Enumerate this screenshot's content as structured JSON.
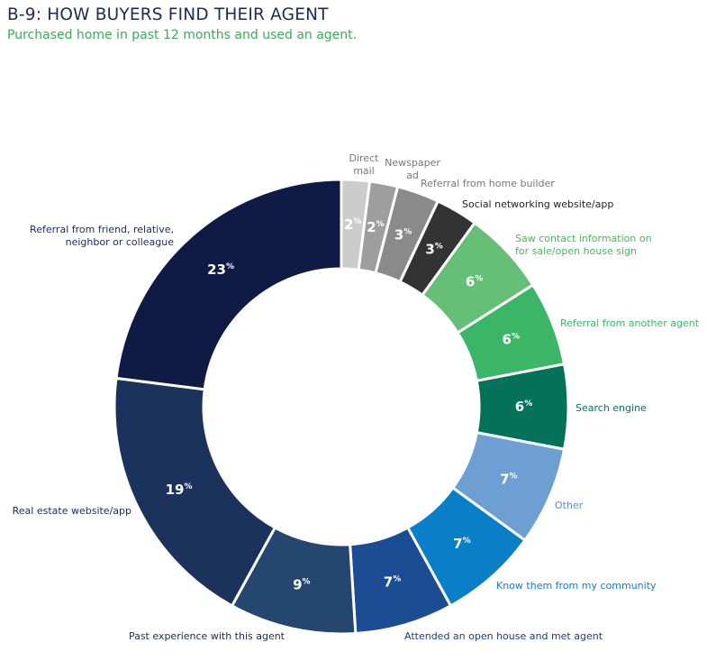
{
  "header": {
    "title": "B-9: HOW BUYERS FIND THEIR AGENT",
    "subtitle": "Purchased home in past 12 months and used an agent."
  },
  "chart_data": {
    "type": "pie",
    "title": "B-9: HOW BUYERS FIND THEIR AGENT",
    "subtitle": "Purchased home in past 12 months and used an agent.",
    "donut": true,
    "value_suffix": "%",
    "slices": [
      {
        "label": "Direct mail",
        "label_lines": [
          "Direct",
          "mail"
        ],
        "value": 2,
        "color": "#cccccc",
        "label_color": "#777777",
        "value_color": "#ffffff"
      },
      {
        "label": "Newspaper ad",
        "label_lines": [
          "Newspaper",
          "ad"
        ],
        "value": 2,
        "color": "#9e9e9e",
        "label_color": "#777777",
        "value_color": "#ffffff"
      },
      {
        "label": "Referral from home builder",
        "label_lines": [
          "Referral from home builder"
        ],
        "value": 3,
        "color": "#8a8a8a",
        "label_color": "#777777",
        "value_color": "#ffffff"
      },
      {
        "label": "Social networking website/app",
        "label_lines": [
          "Social networking website/app"
        ],
        "value": 3,
        "color": "#333333",
        "label_color": "#222222",
        "value_color": "#ffffff"
      },
      {
        "label": "Saw contact information on for sale/open house sign",
        "label_lines": [
          "Saw contact information on",
          "for sale/open house sign"
        ],
        "value": 6,
        "color": "#66bf76",
        "label_color": "#4cb45f",
        "value_color": "#ffffff"
      },
      {
        "label": "Referral from another agent",
        "label_lines": [
          "Referral from another agent"
        ],
        "value": 6,
        "color": "#3bb566",
        "label_color": "#3bb566",
        "value_color": "#ffffff"
      },
      {
        "label": "Search engine",
        "label_lines": [
          "Search engine"
        ],
        "value": 6,
        "color": "#047259",
        "label_color": "#047259",
        "value_color": "#ffffff"
      },
      {
        "label": "Other",
        "label_lines": [
          "Other"
        ],
        "value": 7,
        "color": "#6e9fd2",
        "label_color": "#5a8fc8",
        "value_color": "#ffffff"
      },
      {
        "label": "Know them from my community",
        "label_lines": [
          "Know them from my community"
        ],
        "value": 7,
        "color": "#0a7fc7",
        "label_color": "#0a7fc7",
        "value_color": "#ffffff"
      },
      {
        "label": "Attended an open house and met agent",
        "label_lines": [
          "Attended an open house and met agent"
        ],
        "value": 7,
        "color": "#1b4c94",
        "label_color": "#1b3e78",
        "value_color": "#ffffff"
      },
      {
        "label": "Past experience with this agent",
        "label_lines": [
          "Past experience with this agent"
        ],
        "value": 9,
        "color": "#24466f",
        "label_color": "#1b2b55",
        "value_color": "#ffffff"
      },
      {
        "label": "Real estate website/app",
        "label_lines": [
          "Real estate website/app"
        ],
        "value": 19,
        "color": "#1b325c",
        "label_color": "#1b2b55",
        "value_color": "#ffffff"
      },
      {
        "label": "Referral from friend, relative, neighbor or colleague",
        "label_lines": [
          "Referral from friend, relative,",
          "neighbor or colleague"
        ],
        "value": 23,
        "color": "#0f1a45",
        "label_color": "#1b2b55",
        "value_color": "#ffffff"
      }
    ]
  }
}
